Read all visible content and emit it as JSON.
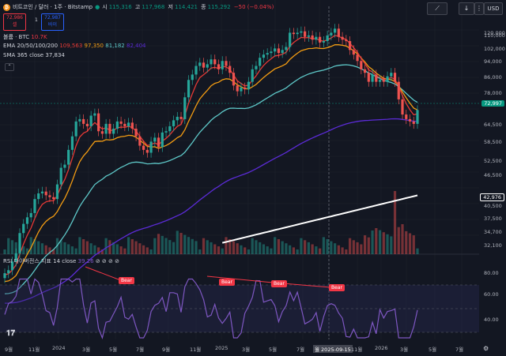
{
  "header": {
    "symbol": "비트코인 / 달러 · 1주 · Bitstamp",
    "ohlc": {
      "o_label": "시",
      "o": "115,316",
      "h_label": "고",
      "h": "117,968",
      "l_label": "저",
      "l": "114,421",
      "c_label": "종",
      "c": "115,292",
      "chg": "−50 (−0.04%)"
    },
    "sell_price": "72,986",
    "sell_label": "셀",
    "spread": "1",
    "buy_price": "72,987",
    "buy_label": "바이"
  },
  "legends": {
    "volume": {
      "label": "볼륨 · BTC",
      "value": "10.7K"
    },
    "ema": {
      "label": "EMA 20/50/100/200",
      "values": [
        "109,563",
        "97,350",
        "81,182",
        "82,404"
      ]
    },
    "sma": {
      "label": "SMA 365 close",
      "value": "37,834"
    },
    "rsi": {
      "label": "RSI 다이버전스 지표 14 close",
      "value": "39.26"
    }
  },
  "toolbar": {
    "currency": "USD"
  },
  "price_axis": [
    "120,000",
    "110,000",
    "102,000",
    "94,000",
    "86,000",
    "78,000",
    "72,997",
    "64,500",
    "58,500",
    "52,500",
    "46,500",
    "42,976",
    "40,500",
    "37,500",
    "34,700",
    "32,100"
  ],
  "current_price": "72,997",
  "sma_price": "42,976",
  "rsi_axis": [
    "80.00",
    "60.00",
    "40.00"
  ],
  "time_axis": [
    "9월",
    "11월",
    "2024",
    "3월",
    "5월",
    "7월",
    "9월",
    "11월",
    "2025",
    "3월",
    "5월",
    "7월",
    "월 2025-09-15",
    "11월",
    "2026",
    "3월",
    "5월",
    "7월"
  ],
  "bear_labels": [
    "Bear",
    "Bear",
    "Bear",
    "Bear"
  ],
  "colors": {
    "up": "#26a69a",
    "down": "#ef5350",
    "ema20": "#e53935",
    "ema50": "#f39c12",
    "ema100": "#5ec8c8",
    "ema200": "#5b2bd6",
    "sma": "#ffffff",
    "rsi": "#7e57c2"
  },
  "chart_data": {
    "type": "candlestick",
    "closes": [
      26500,
      27000,
      28500,
      30000,
      34000,
      36000,
      37500,
      38500,
      42000,
      43500,
      44000,
      43000,
      42500,
      42000,
      46000,
      51000,
      52000,
      57000,
      62000,
      68000,
      69000,
      67000,
      66000,
      70500,
      71500,
      64000,
      63000,
      67000,
      63000,
      65000,
      68000,
      67000,
      66000,
      67500,
      65000,
      62000,
      58500,
      57000,
      56000,
      60000,
      61500,
      58000,
      63500,
      64000,
      66000,
      68500,
      70000,
      69000,
      79000,
      88000,
      91000,
      96000,
      98000,
      95000,
      97000,
      100000,
      97000,
      94000,
      99000,
      96000,
      92000,
      85000,
      82000,
      84000,
      83000,
      87000,
      94000,
      96000,
      101000,
      103000,
      104000,
      105000,
      107000,
      104000,
      106000,
      108000,
      118000,
      117000,
      118000,
      119000,
      115000,
      116000,
      113000,
      115000,
      111000,
      112000,
      116000,
      118000,
      121000,
      115000,
      113000,
      112000,
      106000,
      103000,
      99000,
      94000,
      92000,
      87000,
      91000,
      87000,
      88000,
      87000,
      90000,
      92000,
      87000,
      78000,
      71000,
      69000,
      68000,
      67000,
      72997
    ]
  }
}
